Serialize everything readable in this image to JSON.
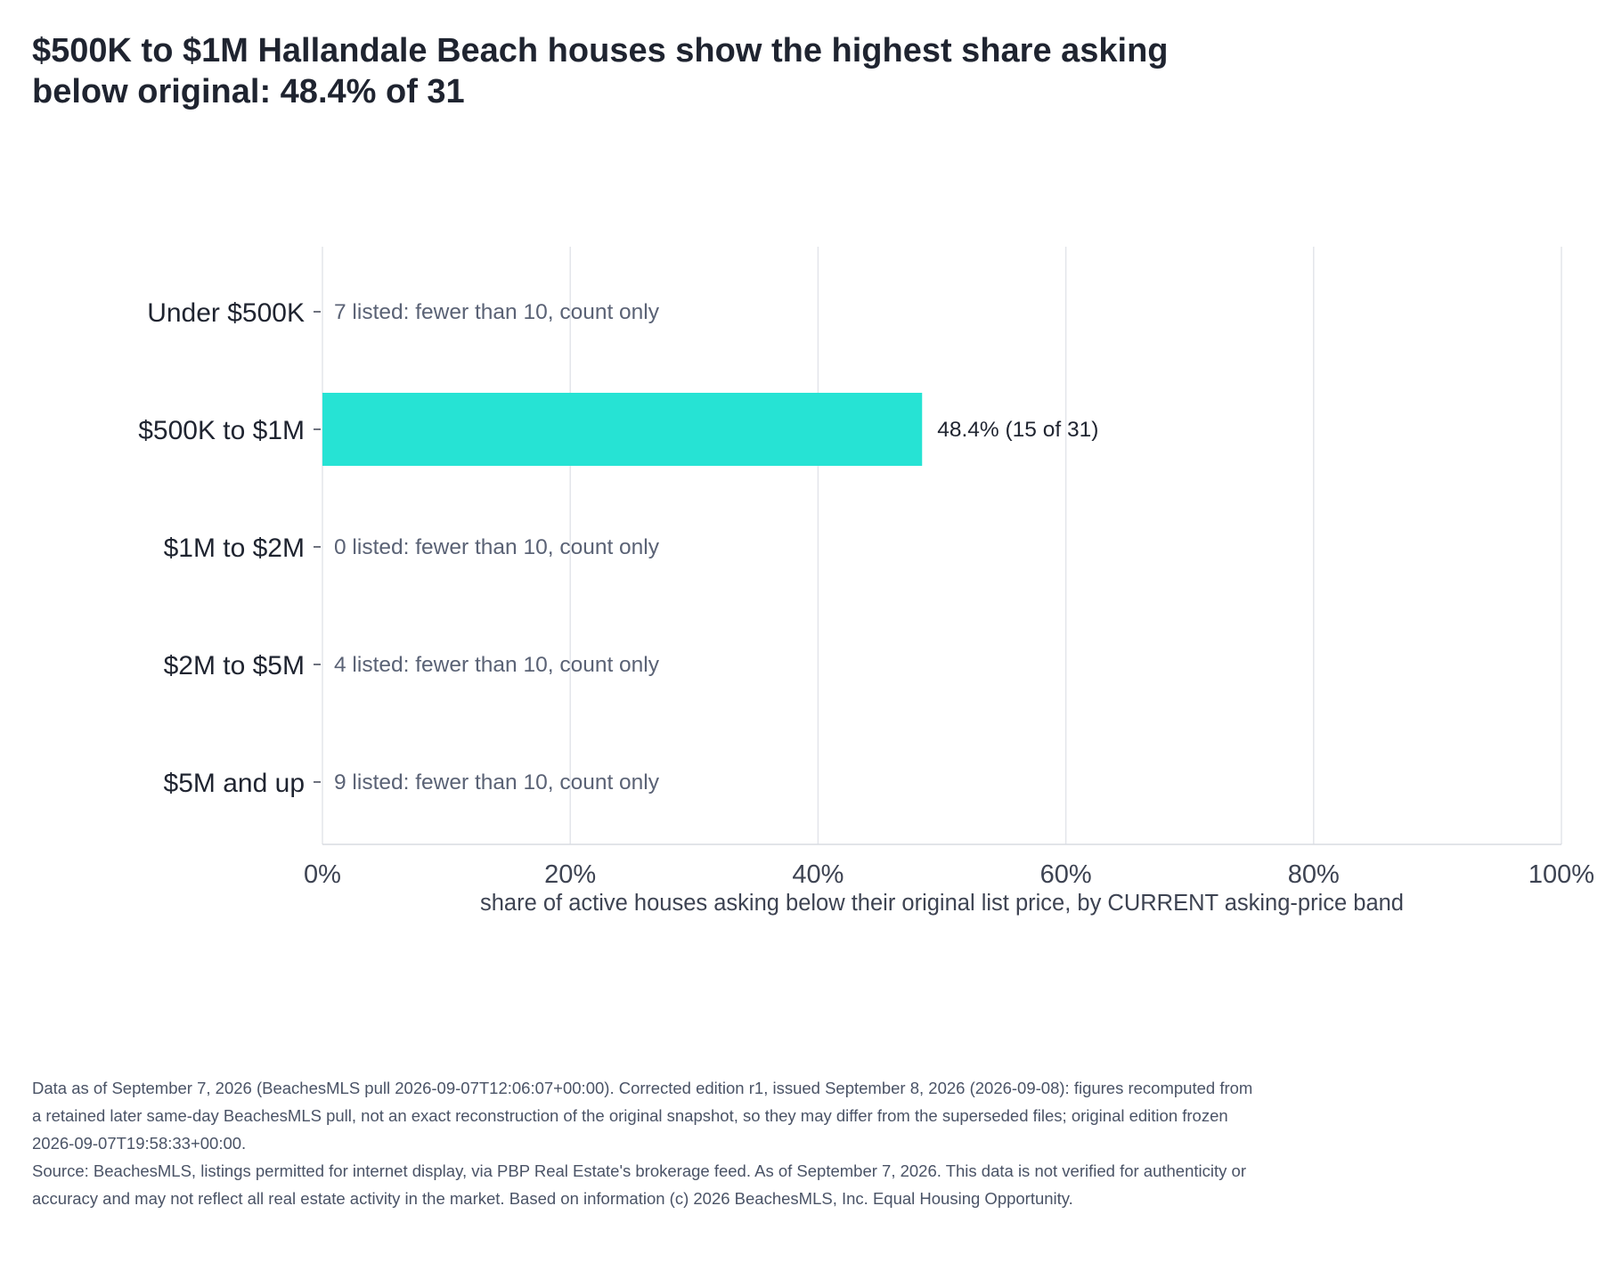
{
  "chart_data": {
    "type": "bar",
    "orientation": "horizontal",
    "title": "$500K to $1M Hallandale Beach houses show the highest share asking below original: 48.4% of 31",
    "xlabel": "share of active houses asking below their original list price, by CURRENT asking-price band",
    "ylabel": "",
    "xlim": [
      0,
      100
    ],
    "x_ticks": [
      "0%",
      "20%",
      "40%",
      "60%",
      "80%",
      "100%"
    ],
    "grid": true,
    "categories": [
      "Under $500K",
      "$500K to $1M",
      "$1M to $2M",
      "$2M to $5M",
      "$5M and up"
    ],
    "values": [
      null,
      48.4,
      null,
      null,
      null
    ],
    "data_labels": [
      "7 listed: fewer than 10, count only",
      "48.4%  (15 of 31)",
      "0 listed: fewer than 10, count only",
      "4 listed: fewer than 10, count only",
      "9 listed: fewer than 10, count only"
    ],
    "bar_color": "#26e3d4",
    "note_color": "#5a6275"
  },
  "footnote": {
    "line1": "Data as of September 7, 2026 (BeachesMLS pull 2026-09-07T12:06:07+00:00). Corrected edition r1, issued September 8, 2026 (2026-09-08): figures recomputed from a retained later same-day BeachesMLS pull, not an exact reconstruction of the original snapshot, so they may differ from the superseded files; original edition frozen 2026-09-07T19:58:33+00:00.",
    "line2": "Source: BeachesMLS, listings permitted for internet display, via PBP Real Estate's brokerage feed. As of September 7, 2026. This data is not verified for authenticity or accuracy and may not reflect all real estate activity in the market. Based on information (c) 2026 BeachesMLS, Inc. Equal Housing Opportunity."
  }
}
